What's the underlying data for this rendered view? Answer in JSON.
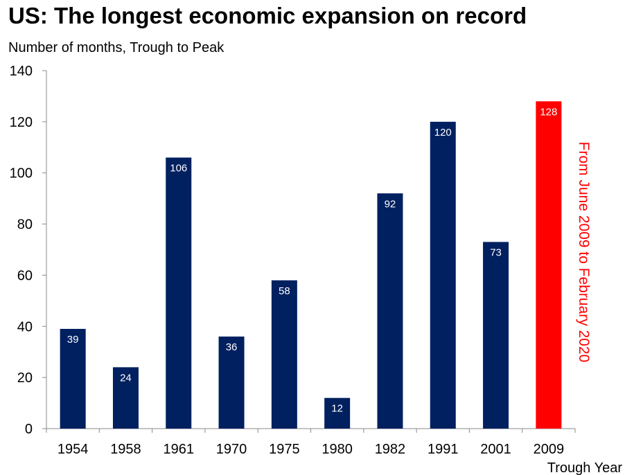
{
  "chart_data": {
    "type": "bar",
    "title": "US: The longest economic expansion on record",
    "subtitle": "Number of months, Trough to Peak",
    "xlabel": "Trough Year",
    "ylabel": "",
    "categories": [
      "1954",
      "1958",
      "1961",
      "1970",
      "1975",
      "1980",
      "1982",
      "1991",
      "2001",
      "2009"
    ],
    "values": [
      39,
      24,
      106,
      36,
      58,
      12,
      92,
      120,
      73,
      128
    ],
    "ylim": [
      0,
      140
    ],
    "yticks": [
      "0",
      "20",
      "40",
      "60",
      "80",
      "100",
      "120",
      "140"
    ],
    "grid": false,
    "legend": "none",
    "annotation": "From June 2009 to February 2020",
    "colors": {
      "default": "#002060",
      "highlight": "#ff0000"
    },
    "highlight_index": 9
  }
}
